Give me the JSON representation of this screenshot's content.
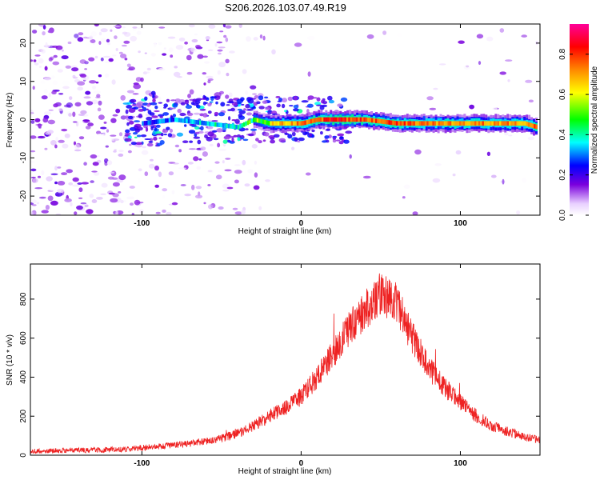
{
  "figure": {
    "title": "S206.2026.103.07.49.R19"
  },
  "chart_data": [
    {
      "type": "heatmap",
      "title": "",
      "xlabel": "Height of straight line (km)",
      "ylabel": "Frequency (Hz)",
      "xlim": [
        -170,
        150
      ],
      "ylim": [
        -25,
        25
      ],
      "xticks": [
        -100,
        0,
        100
      ],
      "yticks": [
        -20,
        -10,
        0,
        10,
        20
      ],
      "colorbar": {
        "label": "Normalized spectral amplitude",
        "range": [
          0.0,
          0.95
        ],
        "ticks": [
          0.0,
          0.2,
          0.4,
          0.6,
          0.8
        ],
        "colors": [
          "#ffffff",
          "#e6ccff",
          "#6600cc",
          "#0000ff",
          "#00ffff",
          "#00ff00",
          "#ffff00",
          "#ff8800",
          "#ff0000",
          "#ff00ff"
        ]
      },
      "ridge": {
        "description": "dominant frequency track",
        "x": [
          -100,
          -80,
          -60,
          -40,
          -30,
          -20,
          -10,
          0,
          10,
          20,
          40,
          60,
          80,
          100,
          120,
          140,
          148
        ],
        "y": [
          -1,
          0,
          -1,
          -2,
          0,
          -1,
          -1,
          -1,
          0,
          0,
          0,
          -1,
          -1,
          -1,
          -1,
          -1,
          -2
        ],
        "amplitude": [
          0.35,
          0.4,
          0.45,
          0.5,
          0.6,
          0.7,
          0.75,
          0.8,
          0.85,
          0.9,
          0.85,
          0.85,
          0.8,
          0.8,
          0.8,
          0.8,
          0.85
        ]
      }
    },
    {
      "type": "line",
      "title": "",
      "xlabel": "Height of straight line (km)",
      "ylabel": "SNR (10 * v/v)",
      "xlim": [
        -170,
        150
      ],
      "ylim": [
        0,
        980
      ],
      "xticks": [
        -100,
        0,
        100
      ],
      "yticks": [
        0,
        200,
        400,
        600,
        800
      ],
      "color": "#ee2222",
      "series": [
        {
          "name": "SNR",
          "x": [
            -170,
            -140,
            -110,
            -90,
            -70,
            -50,
            -40,
            -30,
            -20,
            -10,
            0,
            10,
            20,
            30,
            40,
            50,
            60,
            70,
            80,
            90,
            100,
            110,
            120,
            130,
            140,
            150
          ],
          "y": [
            20,
            25,
            30,
            45,
            60,
            85,
            110,
            150,
            200,
            240,
            300,
            400,
            520,
            650,
            740,
            830,
            780,
            600,
            450,
            350,
            270,
            200,
            150,
            120,
            95,
            80
          ]
        }
      ]
    }
  ]
}
